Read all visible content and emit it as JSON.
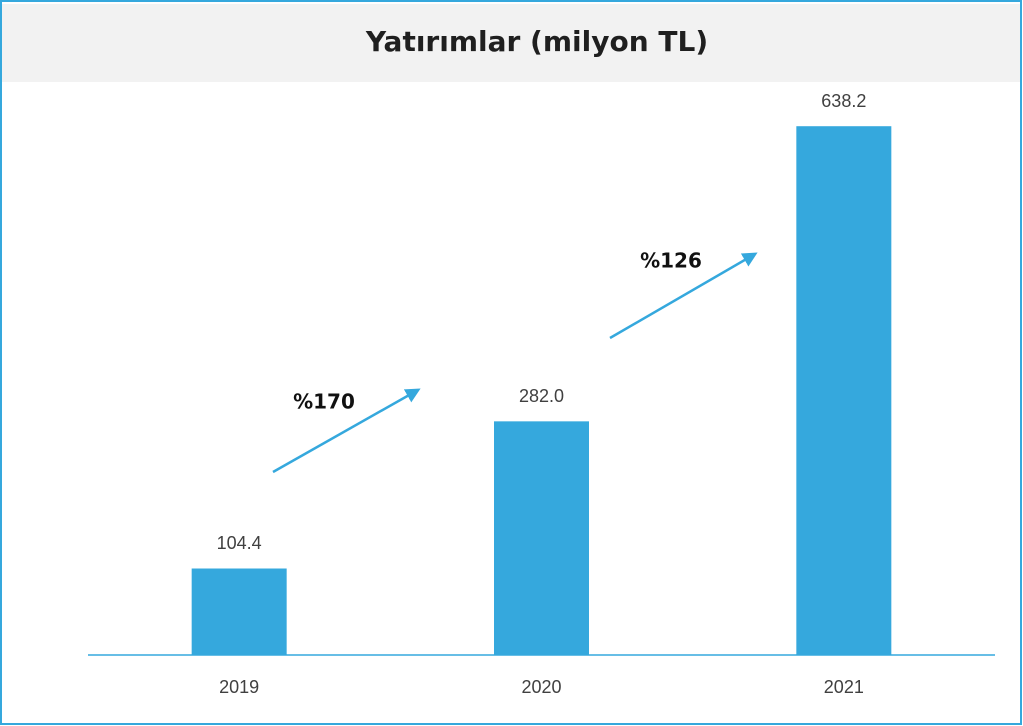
{
  "chart_data": {
    "type": "bar",
    "title": "Yatırımlar (milyon TL)",
    "categories": [
      "2019",
      "2020",
      "2021"
    ],
    "values": [
      104.4,
      282.0,
      638.2
    ],
    "value_labels": [
      "104.4",
      "282.0",
      "638.2"
    ],
    "color": "#35a8dd",
    "ylim": [
      0,
      770
    ],
    "annotations": [
      {
        "text": "%170"
      },
      {
        "text": "%126"
      }
    ]
  }
}
